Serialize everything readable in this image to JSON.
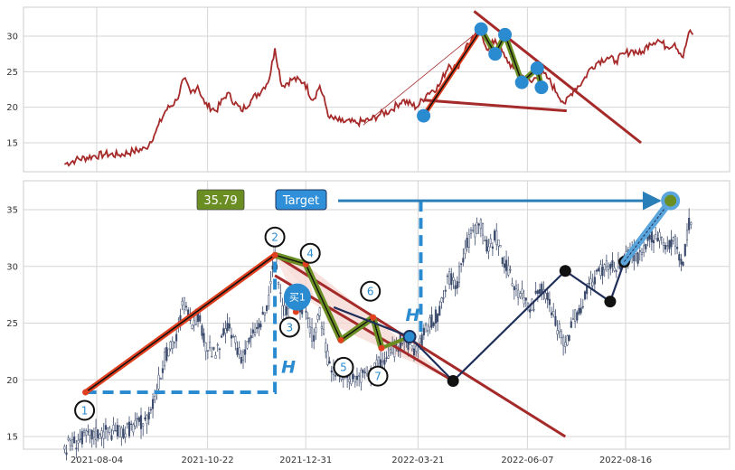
{
  "chart_data": [
    {
      "type": "line",
      "panel": "overview",
      "title": "",
      "xlabel": "",
      "ylabel": "",
      "ylim": [
        11,
        34
      ],
      "yticks": [
        15,
        20,
        25,
        30
      ],
      "grid": true,
      "series_color": "#a52a2a",
      "price": [
        [
          "2021-07-12",
          12.0
        ],
        [
          "2021-07-20",
          12.6
        ],
        [
          "2021-08-01",
          13.1
        ],
        [
          "2021-08-10",
          13.4
        ],
        [
          "2021-08-20",
          13.3
        ],
        [
          "2021-08-30",
          13.8
        ],
        [
          "2021-09-08",
          14.2
        ],
        [
          "2021-09-15",
          16.5
        ],
        [
          "2021-09-22",
          19.5
        ],
        [
          "2021-09-30",
          21.0
        ],
        [
          "2021-10-05",
          24.0
        ],
        [
          "2021-10-10",
          22.0
        ],
        [
          "2021-10-15",
          23.0
        ],
        [
          "2021-10-20",
          20.5
        ],
        [
          "2021-10-28",
          19.5
        ],
        [
          "2021-11-05",
          22.0
        ],
        [
          "2021-11-15",
          19.5
        ],
        [
          "2021-11-22",
          21.0
        ],
        [
          "2021-11-30",
          22.5
        ],
        [
          "2021-12-05",
          24.0
        ],
        [
          "2021-12-09",
          28.3
        ],
        [
          "2021-12-14",
          23.0
        ],
        [
          "2021-12-22",
          24.0
        ],
        [
          "2021-12-30",
          23.5
        ],
        [
          "2022-01-05",
          21.0
        ],
        [
          "2022-01-10",
          23.0
        ],
        [
          "2022-01-17",
          18.5
        ],
        [
          "2022-01-25",
          18.0
        ],
        [
          "2022-02-05",
          17.8
        ],
        [
          "2022-02-15",
          18.2
        ],
        [
          "2022-02-22",
          19.0
        ],
        [
          "2022-03-01",
          19.5
        ],
        [
          "2022-03-10",
          21.0
        ],
        [
          "2022-03-20",
          20.0
        ],
        [
          "2022-03-28",
          22.0
        ],
        [
          "2022-04-05",
          23.0
        ],
        [
          "2022-04-12",
          26.0
        ],
        [
          "2022-04-18",
          25.5
        ],
        [
          "2022-04-24",
          28.5
        ],
        [
          "2022-04-30",
          29.8
        ],
        [
          "2022-05-05",
          30.5
        ],
        [
          "2022-05-10",
          28.0
        ],
        [
          "2022-05-15",
          29.5
        ],
        [
          "2022-05-22",
          27.0
        ],
        [
          "2022-05-28",
          25.5
        ],
        [
          "2022-06-03",
          24.5
        ],
        [
          "2022-06-10",
          23.5
        ],
        [
          "2022-06-16",
          25.0
        ],
        [
          "2022-06-22",
          24.0
        ],
        [
          "2022-06-28",
          22.0
        ],
        [
          "2022-07-04",
          20.5
        ],
        [
          "2022-07-10",
          22.5
        ],
        [
          "2022-07-16",
          23.5
        ],
        [
          "2022-07-22",
          25.5
        ],
        [
          "2022-07-28",
          26.5
        ],
        [
          "2022-08-03",
          27.0
        ],
        [
          "2022-08-09",
          26.5
        ],
        [
          "2022-08-15",
          27.5
        ],
        [
          "2022-08-21",
          28.0
        ],
        [
          "2022-08-27",
          27.5
        ],
        [
          "2022-09-02",
          29.0
        ],
        [
          "2022-09-08",
          29.5
        ],
        [
          "2022-09-14",
          28.5
        ],
        [
          "2022-09-20",
          29.0
        ],
        [
          "2022-09-26",
          27.0
        ],
        [
          "2022-09-30",
          30.5
        ],
        [
          "2022-10-03",
          30.2
        ]
      ],
      "pattern_points": [
        [
          "2022-03-25",
          18.8
        ],
        [
          "2022-05-05",
          31.0
        ],
        [
          "2022-05-15",
          27.5
        ],
        [
          "2022-05-22",
          30.2
        ],
        [
          "2022-06-03",
          23.5
        ],
        [
          "2022-06-14",
          25.5
        ],
        [
          "2022-06-17",
          22.8
        ]
      ],
      "channel_lines": [
        {
          "from": [
            "2022-03-25",
            18.8
          ],
          "to": [
            "2022-05-05",
            31.0
          ],
          "color": "#e04020"
        },
        {
          "from": [
            "2022-04-30",
            33.5
          ],
          "to": [
            "2022-08-27",
            15.0
          ],
          "color": "#a52a2a"
        },
        {
          "from": [
            "2022-03-25",
            21.0
          ],
          "to": [
            "2022-07-05",
            19.5
          ],
          "color": "#a52a2a"
        }
      ],
      "arrow": {
        "from": [
          "2022-02-10",
          17.5
        ],
        "to": [
          "2022-05-05",
          31.0
        ]
      }
    },
    {
      "type": "candlestick",
      "panel": "detail",
      "title": "",
      "xlabel": "",
      "ylabel": "",
      "ylim": [
        14,
        38
      ],
      "yticks": [
        15,
        20,
        25,
        30,
        35
      ],
      "xticks": [
        "2021-08-04",
        "2021-10-22",
        "2021-12-31",
        "2022-03-21",
        "2022-06-07",
        "2022-08-16"
      ],
      "grid": true,
      "labels": {
        "value_box": "35.79",
        "target_box": "Target",
        "h_label": "H",
        "buy_label": "买1"
      },
      "box_colors": {
        "value_box": "#6b8e23",
        "target_box": "#2f8fd8"
      },
      "pattern_points": [
        {
          "label": "1",
          "date": "2021-07-27",
          "price": 18.9
        },
        {
          "label": "2",
          "date": "2021-12-09",
          "price": 31.0
        },
        {
          "label": "3",
          "date": "2021-12-24",
          "price": 26.0
        },
        {
          "label": "4",
          "date": "2021-12-31",
          "price": 30.2
        },
        {
          "label": "5",
          "date": "2022-01-25",
          "price": 23.5
        },
        {
          "label": "6",
          "date": "2022-02-17",
          "price": 25.5
        },
        {
          "label": "7",
          "date": "2022-02-23",
          "price": 22.8
        }
      ],
      "buy_point": {
        "date": "2021-12-25",
        "price": 27.3
      },
      "target": {
        "date": "2022-09-17",
        "price": 35.79
      },
      "followup_points": [
        [
          "2022-03-15",
          23.8
        ],
        [
          "2022-04-15",
          19.9
        ],
        [
          "2022-07-04",
          29.6
        ],
        [
          "2022-08-05",
          26.9
        ],
        [
          "2022-08-15",
          30.4
        ]
      ]
    }
  ]
}
